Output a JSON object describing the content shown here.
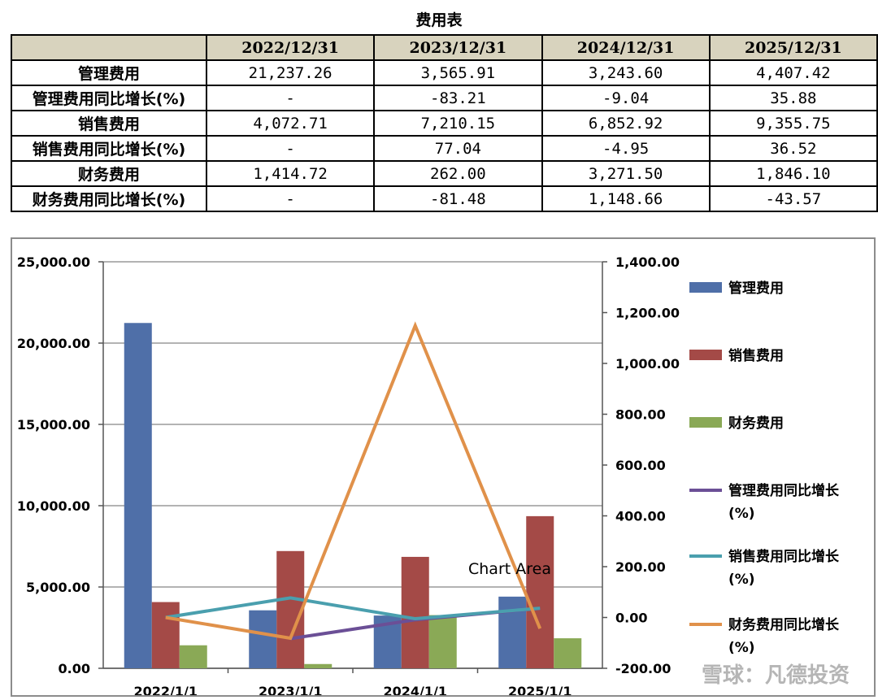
{
  "table": {
    "title": "费用表",
    "headers": [
      "",
      "2022/12/31",
      "2023/12/31",
      "2024/12/31",
      "2025/12/31"
    ],
    "rows": [
      {
        "label": "管理费用",
        "values": [
          "21,237.26",
          "3,565.91",
          "3,243.60",
          "4,407.42"
        ]
      },
      {
        "label": "管理费用同比增长(%)",
        "values": [
          "-",
          "-83.21",
          "-9.04",
          "35.88"
        ]
      },
      {
        "label": "销售费用",
        "values": [
          "4,072.71",
          "7,210.15",
          "6,852.92",
          "9,355.75"
        ]
      },
      {
        "label": "销售费用同比增长(%)",
        "values": [
          "-",
          "77.04",
          "-4.95",
          "36.52"
        ]
      },
      {
        "label": "财务费用",
        "values": [
          "1,414.72",
          "262.00",
          "3,271.50",
          "1,846.10"
        ]
      },
      {
        "label": "财务费用同比增长(%)",
        "values": [
          "-",
          "-81.48",
          "1,148.66",
          "-43.57"
        ]
      }
    ]
  },
  "chart_data": {
    "type": "bar",
    "categories": [
      "2022/1/1",
      "2023/1/1",
      "2024/1/1",
      "2025/1/1"
    ],
    "ylim_left": [
      0,
      25000
    ],
    "yticks_left": [
      "0.00",
      "5,000.00",
      "10,000.00",
      "15,000.00",
      "20,000.00",
      "25,000.00"
    ],
    "ylim_right": [
      -200,
      1400
    ],
    "yticks_right": [
      "-200.00",
      "0.00",
      "200.00",
      "400.00",
      "600.00",
      "800.00",
      "1,000.00",
      "1,200.00",
      "1,400.00"
    ],
    "grid": true,
    "legend_position": "right",
    "bar_series": [
      {
        "name": "管理费用",
        "color": "#4f6fa8",
        "values": [
          21237.26,
          3565.91,
          3243.6,
          4407.42
        ]
      },
      {
        "name": "销售费用",
        "color": "#a44a47",
        "values": [
          4072.71,
          7210.15,
          6852.92,
          9355.75
        ]
      },
      {
        "name": "财务费用",
        "color": "#8aa956",
        "values": [
          1414.72,
          262.0,
          3271.5,
          1846.1
        ]
      }
    ],
    "line_series": [
      {
        "name": "管理费用同比增长(%)",
        "color": "#6b4f96",
        "values": [
          null,
          -83.21,
          -9.04,
          35.88
        ]
      },
      {
        "name": "销售费用同比增长(%)",
        "color": "#4a9fae",
        "values": [
          0,
          77.04,
          -4.95,
          36.52
        ]
      },
      {
        "name": "财务费用同比增长(%)",
        "color": "#e0914a",
        "values": [
          0,
          -81.48,
          1148.66,
          -43.57
        ]
      }
    ],
    "annotation": "Chart Area"
  },
  "watermark": "雪球：凡德投资"
}
